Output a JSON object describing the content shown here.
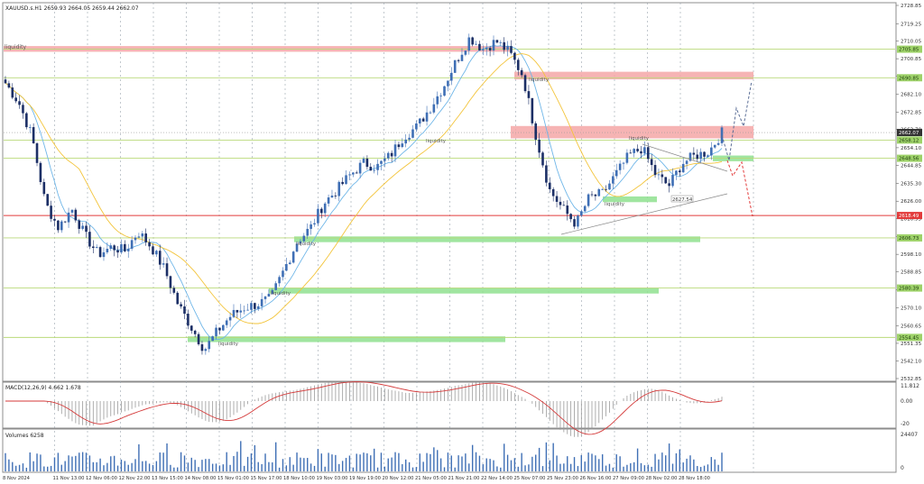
{
  "header": {
    "symbol_line": "XAUUSD.s.H1  2659.93 2664.05 2659.44 2662.07"
  },
  "colors": {
    "bull": "#3f6fb5",
    "bear": "#1c2f66",
    "ma_fast": "#6fb6e8",
    "ma_slow": "#f3c43a",
    "macd_signal": "#d43a3a",
    "macd_hist": "#9a9a9a",
    "volume": "#3f6fb5",
    "liq_red": "#f4a7a7",
    "liq_green": "#8fe08f",
    "level_line": "#b9d97a",
    "red_line": "#e23a3a",
    "grid": "#9aa3ad",
    "axis_text": "#333333"
  },
  "price_axis": {
    "labels": [
      "2728.85",
      "2719.25",
      "2710.05",
      "2700.85",
      "2691.65",
      "2682.10",
      "2672.85",
      "2663.70",
      "2654.10",
      "2644.85",
      "2635.30",
      "2626.00",
      "2616.95",
      "2607.45",
      "2598.10",
      "2588.85",
      "2579.40",
      "2570.10",
      "2560.65",
      "2551.35",
      "2542.10",
      "2532.85"
    ],
    "tags": [
      {
        "text": "2705.85",
        "kind": "green"
      },
      {
        "text": "2690.85",
        "kind": "green"
      },
      {
        "text": "2662.07",
        "kind": "dark"
      },
      {
        "text": "2658.12",
        "kind": "green"
      },
      {
        "text": "2648.56",
        "kind": "green"
      },
      {
        "text": "2618.49",
        "kind": "red"
      },
      {
        "text": "2606.73",
        "kind": "green"
      },
      {
        "text": "2580.39",
        "kind": "green"
      },
      {
        "text": "2554.45",
        "kind": "green"
      }
    ]
  },
  "time_axis": {
    "labels": [
      "8 Nov 2024",
      "11 Nov 13:00",
      "12 Nov 06:00",
      "12 Nov 22:00",
      "13 Nov 15:00",
      "14 Nov 08:00",
      "15 Nov 01:00",
      "15 Nov 17:00",
      "18 Nov 10:00",
      "19 Nov 03:00",
      "19 Nov 19:00",
      "20 Nov 12:00",
      "21 Nov 05:00",
      "21 Nov 21:00",
      "22 Nov 14:00",
      "25 Nov 07:00",
      "25 Nov 23:00",
      "26 Nov 16:00",
      "27 Nov 09:00",
      "28 Nov 02:00",
      "28 Nov 18:00"
    ]
  },
  "annotations": {
    "liquidity": "liquidity",
    "price_box": "2627.54"
  },
  "macd": {
    "label": "MACD(12,26,9) 4.662 1.678",
    "axis": [
      "11.812",
      "0.00",
      "-20"
    ]
  },
  "volumes": {
    "label": "Volumes 6258",
    "axis": [
      "24407",
      "0"
    ]
  },
  "chart_data": {
    "type": "candlestick",
    "price_range": [
      2532.85,
      2728.85
    ],
    "close_series_approx": [
      2688,
      2678,
      2660,
      2625,
      2612,
      2622,
      2608,
      2598,
      2602,
      2600,
      2610,
      2602,
      2590,
      2572,
      2560,
      2548,
      2558,
      2566,
      2570,
      2572,
      2575,
      2590,
      2605,
      2612,
      2625,
      2632,
      2640,
      2646,
      2644,
      2650,
      2660,
      2665,
      2675,
      2686,
      2700,
      2712,
      2706,
      2710,
      2704,
      2692,
      2660,
      2632,
      2622,
      2614,
      2628,
      2630,
      2640,
      2650,
      2654,
      2640,
      2634,
      2646,
      2650,
      2652,
      2662
    ],
    "close_labels": [
      "8 Nov 2024",
      "11 Nov 13:00",
      "12 Nov 06:00",
      "12 Nov 22:00",
      "13 Nov 15:00",
      "14 Nov 08:00",
      "15 Nov 01:00",
      "15 Nov 17:00",
      "18 Nov 10:00",
      "19 Nov 03:00",
      "19 Nov 19:00",
      "20 Nov 12:00",
      "21 Nov 05:00",
      "21 Nov 21:00",
      "22 Nov 14:00",
      "25 Nov 07:00",
      "25 Nov 23:00",
      "26 Nov 16:00",
      "27 Nov 09:00",
      "28 Nov 02:00",
      "28 Nov 18:00"
    ],
    "horizontal_levels": [
      {
        "price": 2705.85,
        "style": "green-line"
      },
      {
        "price": 2690.85,
        "style": "green-line"
      },
      {
        "price": 2658.12,
        "style": "green-line"
      },
      {
        "price": 2648.56,
        "style": "green-line"
      },
      {
        "price": 2618.49,
        "style": "red-line"
      },
      {
        "price": 2606.73,
        "style": "green-line"
      },
      {
        "price": 2580.39,
        "style": "green-line"
      },
      {
        "price": 2554.45,
        "style": "green-line"
      }
    ],
    "liquidity_zones": [
      {
        "color": "red",
        "price_top": 2707.5,
        "price_bottom": 2704.5
      },
      {
        "color": "red",
        "price_top": 2694,
        "price_bottom": 2690
      },
      {
        "color": "red",
        "price_top": 2665.5,
        "price_bottom": 2659
      },
      {
        "color": "green",
        "price_top": 2650,
        "price_bottom": 2647
      },
      {
        "color": "green",
        "price_top": 2628.5,
        "price_bottom": 2625.5
      },
      {
        "color": "green",
        "price_top": 2607.5,
        "price_bottom": 2604.5
      },
      {
        "color": "green",
        "price_top": 2580.5,
        "price_bottom": 2577.5
      },
      {
        "color": "green",
        "price_top": 2555,
        "price_bottom": 2552
      }
    ]
  }
}
